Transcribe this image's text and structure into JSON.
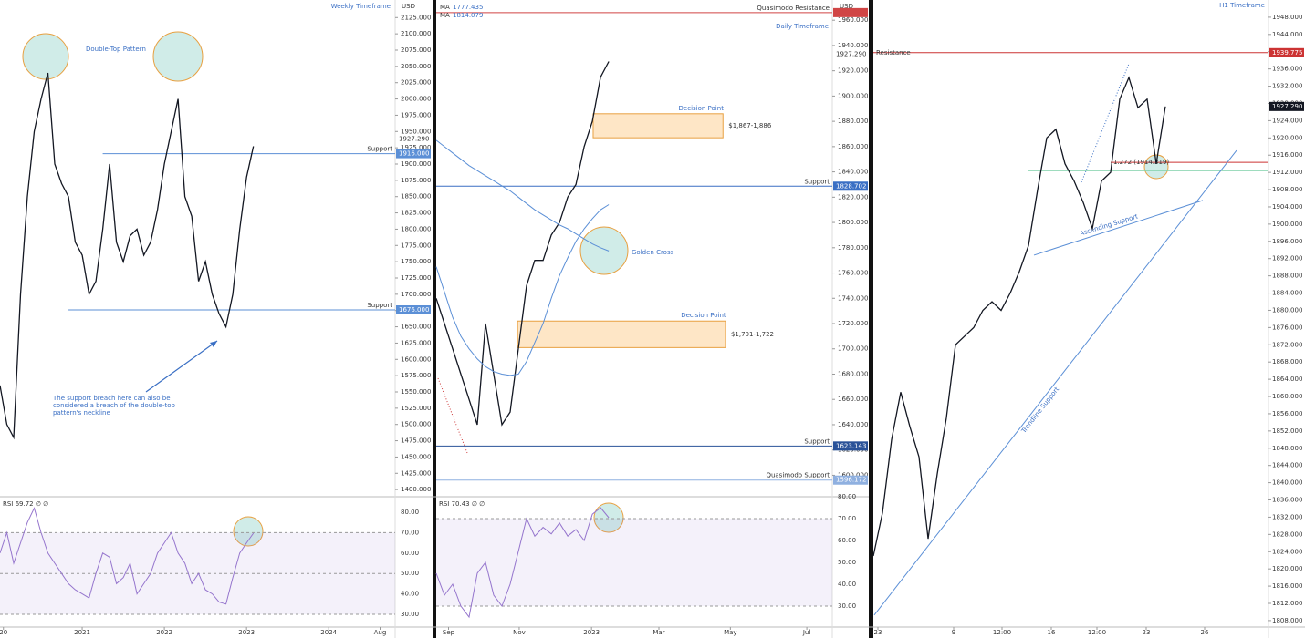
{
  "chart_data": [
    {
      "type": "line",
      "title": "Weekly Timeframe",
      "currency": "USD",
      "xlim": [
        0,
        57.7
      ],
      "xticks": [
        {
          "value": 0.5,
          "label": "20"
        },
        {
          "value": 12,
          "label": "2021"
        },
        {
          "value": 24,
          "label": "2022"
        },
        {
          "value": 36,
          "label": "2023"
        },
        {
          "value": 48,
          "label": "2024"
        },
        {
          "value": 55.5,
          "label": "Aug"
        }
      ],
      "ylim": [
        1389,
        2152
      ],
      "yticks": [
        {
          "value": 1400,
          "label": "1400.000"
        },
        {
          "value": 1425,
          "label": "1425.000"
        },
        {
          "value": 1450,
          "label": "1450.000"
        },
        {
          "value": 1475,
          "label": "1475.000"
        },
        {
          "value": 1500,
          "label": "1500.000"
        },
        {
          "value": 1525,
          "label": "1525.000"
        },
        {
          "value": 1550,
          "label": "1550.000"
        },
        {
          "value": 1575,
          "label": "1575.000"
        },
        {
          "value": 1600,
          "label": "1600.000"
        },
        {
          "value": 1625,
          "label": "1625.000"
        },
        {
          "value": 1650,
          "label": "1650.000"
        },
        {
          "value": 1675,
          "label": "1675.000"
        },
        {
          "value": 1700,
          "label": "1700.000"
        },
        {
          "value": 1725,
          "label": "1725.000"
        },
        {
          "value": 1750,
          "label": "1750.000"
        },
        {
          "value": 1775,
          "label": "1775.000"
        },
        {
          "value": 1800,
          "label": "1800.000"
        },
        {
          "value": 1825,
          "label": "1825.000"
        },
        {
          "value": 1850,
          "label": "1850.000"
        },
        {
          "value": 1875,
          "label": "1875.000"
        },
        {
          "value": 1900,
          "label": "1900.000"
        },
        {
          "value": 1925,
          "label": "1925.000"
        },
        {
          "value": 1950,
          "label": "1950.000"
        },
        {
          "value": 1975,
          "label": "1975.000"
        },
        {
          "value": 2000,
          "label": "2000.000"
        },
        {
          "value": 2025,
          "label": "2025.000"
        },
        {
          "value": 2050,
          "label": "2050.000"
        },
        {
          "value": 2075,
          "label": "2075.000"
        },
        {
          "value": 2100,
          "label": "2100.000"
        },
        {
          "value": 2125,
          "label": "2125.000"
        }
      ],
      "series": [
        {
          "color": "#131722",
          "values": [
            1560,
            1500,
            1480,
            1700,
            1850,
            1950,
            2000,
            2040,
            1900,
            1870,
            1850,
            1780,
            1760,
            1700,
            1720,
            1800,
            1900,
            1780,
            1750,
            1790,
            1800,
            1760,
            1780,
            1830,
            1900,
            1950,
            2000,
            1850,
            1820,
            1720,
            1750,
            1700,
            1670,
            1650,
            1700,
            1800,
            1880,
            1927.29
          ]
        }
      ],
      "last_label": "1927.290",
      "levels": [
        {
          "label": "Support",
          "value": 1916,
          "price_label": "1916.000",
          "from": 15,
          "color": "#5b8fd6"
        },
        {
          "label": "Support",
          "value": 1676,
          "price_label": "1676.000",
          "from": 10,
          "color": "#5b8fd6"
        }
      ],
      "annotations": [
        {
          "lines": [
            "Double-Top Pattern"
          ]
        },
        {
          "lines": [
            "The support breach here can also be",
            "considered a breach of the double-top",
            "pattern's neckline"
          ]
        }
      ],
      "rsi": {
        "header": "RSI  69.72  ∅  ∅",
        "ylim": [
          23.75,
          87.6
        ],
        "band": [
          30,
          70
        ],
        "levels": [
          70,
          50,
          30
        ],
        "color": "#9575cd",
        "yticks": [
          {
            "value": 30,
            "label": "30.00"
          },
          {
            "value": 40,
            "label": "40.00"
          },
          {
            "value": 50,
            "label": "50.00"
          },
          {
            "value": 60,
            "label": "60.00"
          },
          {
            "value": 70,
            "label": "70.00"
          },
          {
            "value": 80,
            "label": "80.00"
          }
        ],
        "values": [
          60,
          70,
          55,
          65,
          75,
          82,
          70,
          60,
          55,
          50,
          45,
          42,
          40,
          38,
          50,
          60,
          58,
          45,
          48,
          55,
          40,
          45,
          50,
          60,
          65,
          70,
          60,
          55,
          45,
          50,
          42,
          40,
          36,
          35,
          48,
          60,
          65,
          69.72
        ]
      }
    },
    {
      "type": "line",
      "title": "Daily Timeframe",
      "currency": "USD",
      "xlim": [
        0,
        48.2
      ],
      "xticks": [
        {
          "value": 1.5,
          "label": "Sep"
        },
        {
          "value": 10.1,
          "label": "Nov"
        },
        {
          "value": 18.9,
          "label": "2023"
        },
        {
          "value": 27.1,
          "label": "Mar"
        },
        {
          "value": 35.8,
          "label": "May"
        },
        {
          "value": 45.1,
          "label": "Jul"
        }
      ],
      "ylim": [
        1583,
        1976
      ],
      "yticks": [
        {
          "value": 1600,
          "label": "1600.000"
        },
        {
          "value": 1620,
          "label": "1620.000"
        },
        {
          "value": 1640,
          "label": "1640.000"
        },
        {
          "value": 1660,
          "label": "1660.000"
        },
        {
          "value": 1680,
          "label": "1680.000"
        },
        {
          "value": 1700,
          "label": "1700.000"
        },
        {
          "value": 1720,
          "label": "1720.000"
        },
        {
          "value": 1740,
          "label": "1740.000"
        },
        {
          "value": 1760,
          "label": "1760.000"
        },
        {
          "value": 1780,
          "label": "1780.000"
        },
        {
          "value": 1800,
          "label": "1800.000"
        },
        {
          "value": 1820,
          "label": "1820.000"
        },
        {
          "value": 1840,
          "label": "1840.000"
        },
        {
          "value": 1860,
          "label": "1860.000"
        },
        {
          "value": 1880,
          "label": "1880.000"
        },
        {
          "value": 1900,
          "label": "1900.000"
        },
        {
          "value": 1920,
          "label": "1920.000"
        },
        {
          "value": 1940,
          "label": "1940.000"
        },
        {
          "value": 1960,
          "label": "1960.000"
        }
      ],
      "series": [
        {
          "color": "#131722",
          "values": [
            1740,
            1720,
            1700,
            1680,
            1660,
            1640,
            1720,
            1680,
            1640,
            1650,
            1700,
            1750,
            1770,
            1770,
            1790,
            1800,
            1820,
            1830,
            1860,
            1880,
            1915,
            1927.29
          ]
        },
        {
          "color": "#5b8fd6",
          "values": [
            1865,
            1860,
            1855,
            1850,
            1845,
            1841,
            1837,
            1833,
            1829,
            1825,
            1820,
            1815,
            1810,
            1806,
            1802,
            1798,
            1795,
            1791,
            1787,
            1783,
            1780,
            1777.435
          ]
        },
        {
          "color": "#5b8fd6",
          "values": [
            1765,
            1745,
            1725,
            1710,
            1700,
            1692,
            1686,
            1682,
            1680,
            1679,
            1680,
            1690,
            1705,
            1720,
            1740,
            1758,
            1772,
            1785,
            1795,
            1803,
            1810,
            1814.079
          ]
        }
      ],
      "ma_legend": [
        {
          "label": "MA",
          "value": 1777.435
        },
        {
          "label": "MA",
          "value": 1814.079
        }
      ],
      "last_label": "1927.290",
      "levels": [
        {
          "label": "Quasimodo Resistance",
          "value": 1966,
          "from": 0,
          "color": "#d04545"
        },
        {
          "label": "Support",
          "value": 1828.702,
          "price_label": "1828.702",
          "from": 0,
          "color": "#3a6fc4"
        },
        {
          "label": "Support",
          "value": 1623.143,
          "price_label": "1623.143",
          "from": 0,
          "color": "#2a5298"
        },
        {
          "label": "Quasimodo Support",
          "value": 1596.172,
          "price_label": "1596.172",
          "from": 0,
          "color": "#8fb0e0"
        }
      ],
      "zones": [
        {
          "label": "Decision Point",
          "range_label": "$1,867-1,886",
          "low": 1867,
          "high": 1886,
          "from": 19.1,
          "to": 34.9
        },
        {
          "label": "Decision Point",
          "range_label": "$1,701-1,722",
          "low": 1701,
          "high": 1722,
          "from": 9.9,
          "to": 35.2
        }
      ],
      "annotations": [
        {
          "lines": [
            "Golden Cross"
          ]
        }
      ],
      "rsi": {
        "header": "RSI  70.43  ∅  ∅",
        "ylim": [
          20.4,
          80
        ],
        "band": [
          30,
          70
        ],
        "levels": [
          70,
          30
        ],
        "color": "#9575cd",
        "yticks": [
          {
            "value": 30,
            "label": "30.00"
          },
          {
            "value": 40,
            "label": "40.00"
          },
          {
            "value": 50,
            "label": "50.00"
          },
          {
            "value": 60,
            "label": "60.00"
          },
          {
            "value": 70,
            "label": "70.00"
          },
          {
            "value": 80,
            "label": "80.00"
          }
        ],
        "values": [
          45,
          35,
          40,
          30,
          25,
          45,
          50,
          35,
          30,
          40,
          55,
          70,
          62,
          66,
          63,
          68,
          62,
          65,
          60,
          72,
          75,
          70.43
        ]
      }
    },
    {
      "type": "line",
      "title": "H1 Timeframe",
      "xlim": [
        0,
        43.3
      ],
      "xticks": [
        {
          "value": 0.5,
          "label": "23"
        },
        {
          "value": 8.8,
          "label": "9"
        },
        {
          "value": 14.1,
          "label": "12:00"
        },
        {
          "value": 19.5,
          "label": "16"
        },
        {
          "value": 24.5,
          "label": "12:00"
        },
        {
          "value": 29.9,
          "label": "23"
        },
        {
          "value": 36.3,
          "label": "26"
        }
      ],
      "ylim": [
        1806.5,
        1952
      ],
      "yticks": [
        {
          "value": 1808,
          "label": "1808.000"
        },
        {
          "value": 1812,
          "label": "1812.000"
        },
        {
          "value": 1816,
          "label": "1816.000"
        },
        {
          "value": 1820,
          "label": "1820.000"
        },
        {
          "value": 1824,
          "label": "1824.000"
        },
        {
          "value": 1828,
          "label": "1828.000"
        },
        {
          "value": 1832,
          "label": "1832.000"
        },
        {
          "value": 1836,
          "label": "1836.000"
        },
        {
          "value": 1840,
          "label": "1840.000"
        },
        {
          "value": 1844,
          "label": "1844.000"
        },
        {
          "value": 1848,
          "label": "1848.000"
        },
        {
          "value": 1852,
          "label": "1852.000"
        },
        {
          "value": 1856,
          "label": "1856.000"
        },
        {
          "value": 1860,
          "label": "1860.000"
        },
        {
          "value": 1864,
          "label": "1864.000"
        },
        {
          "value": 1868,
          "label": "1868.000"
        },
        {
          "value": 1872,
          "label": "1872.000"
        },
        {
          "value": 1876,
          "label": "1876.000"
        },
        {
          "value": 1880,
          "label": "1880.000"
        },
        {
          "value": 1884,
          "label": "1884.000"
        },
        {
          "value": 1888,
          "label": "1888.000"
        },
        {
          "value": 1892,
          "label": "1892.000"
        },
        {
          "value": 1896,
          "label": "1896.000"
        },
        {
          "value": 1900,
          "label": "1900.000"
        },
        {
          "value": 1904,
          "label": "1904.000"
        },
        {
          "value": 1908,
          "label": "1908.000"
        },
        {
          "value": 1912,
          "label": "1912.000"
        },
        {
          "value": 1916,
          "label": "1916.000"
        },
        {
          "value": 1920,
          "label": "1920.000"
        },
        {
          "value": 1924,
          "label": "1924.000"
        },
        {
          "value": 1928,
          "label": "1928.000"
        },
        {
          "value": 1932,
          "label": "1932.000"
        },
        {
          "value": 1936,
          "label": "1936.000"
        },
        {
          "value": 1940,
          "label": "1940.000"
        },
        {
          "value": 1944,
          "label": "1944.000"
        },
        {
          "value": 1948,
          "label": "1948.000"
        }
      ],
      "series": [
        {
          "color": "#131722",
          "values": [
            1823,
            1833,
            1850,
            1861,
            1853,
            1846,
            1827,
            1842,
            1855,
            1872,
            1874,
            1876,
            1880,
            1882,
            1880,
            1884,
            1889,
            1895,
            1908,
            1920,
            1922,
            1914,
            1910,
            1905,
            1899,
            1910,
            1912,
            1929,
            1934,
            1927,
            1929,
            1914,
            1927.29
          ]
        }
      ],
      "last_label": "1927.290",
      "levels": [
        {
          "label": "Resistance",
          "value": 1939.775,
          "price_label": "1939.775",
          "from": 0,
          "color": "#c33"
        },
        {
          "label": "1.272 (1914.319)",
          "value": 1914.319,
          "from": 26,
          "color": "#c33"
        },
        {
          "value": 1912.4,
          "from": 17,
          "color": "#7fd1a8"
        }
      ],
      "trendlines": [
        {
          "label": "Trendline Support",
          "x": [
            0.1,
            39.8
          ],
          "y": [
            1809.3,
            1917.1
          ]
        },
        {
          "label": "Ascending Support",
          "x": [
            17.6,
            36.1
          ],
          "y": [
            1892.8,
            1905.5
          ]
        }
      ]
    }
  ]
}
